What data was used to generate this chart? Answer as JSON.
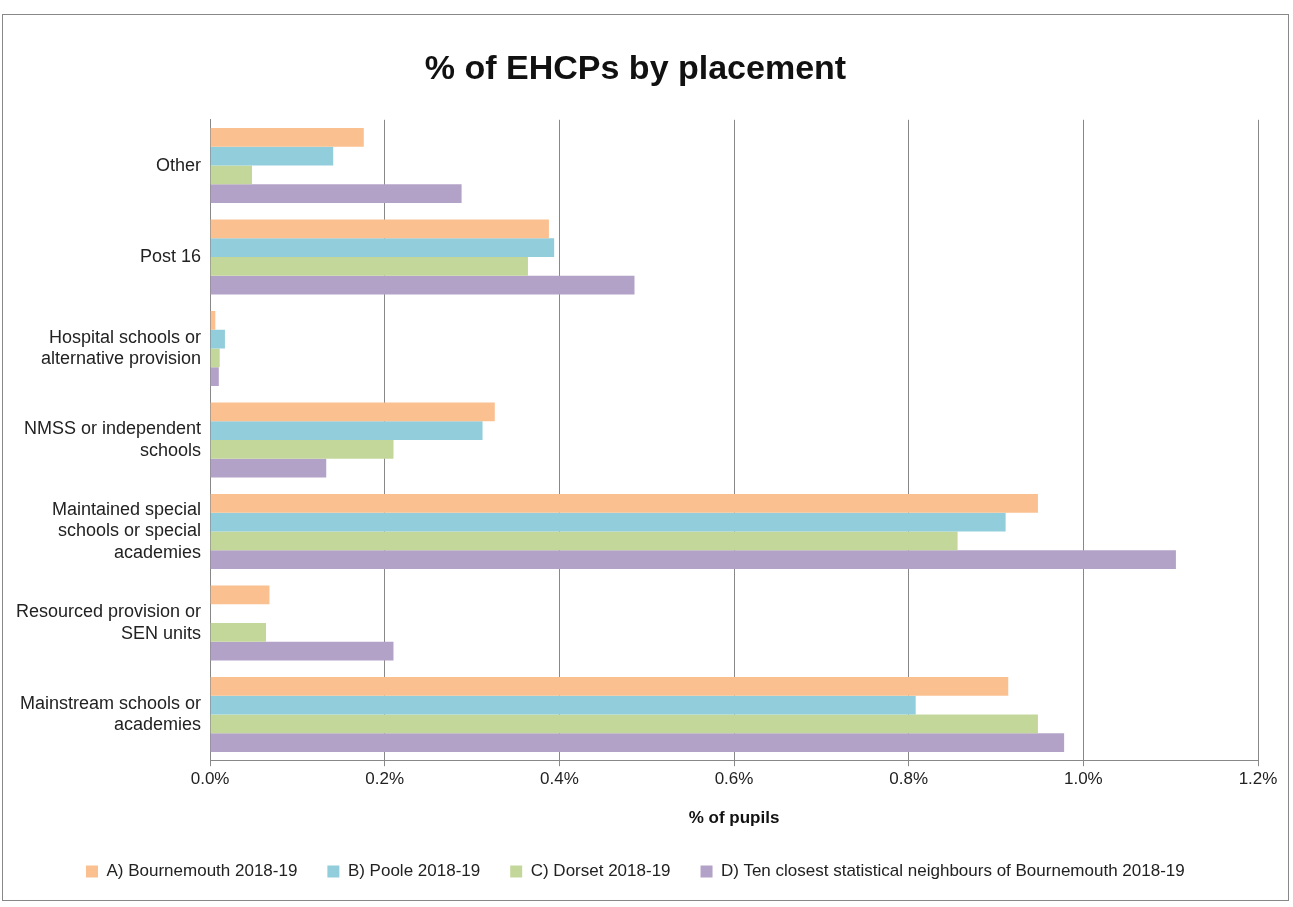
{
  "chart_data": {
    "type": "bar",
    "orientation": "horizontal",
    "title": "% of EHCPs by placement",
    "xlabel": "% of pupils",
    "categories": [
      "Other",
      "Post 16",
      "Hospital schools or alternative provision",
      "NMSS or independent schools",
      "Maintained special schools or special academies",
      "Resourced provision or SEN units",
      "Mainstream schools or academies"
    ],
    "series": [
      {
        "name": "A) Bournemouth 2018-19",
        "color": "#fac090",
        "values": [
          0.176,
          0.388,
          0.006,
          0.326,
          0.948,
          0.068,
          0.914
        ]
      },
      {
        "name": "B) Poole 2018-19",
        "color": "#92cddc",
        "values": [
          0.141,
          0.394,
          0.017,
          0.312,
          0.911,
          null,
          0.808
        ]
      },
      {
        "name": "C) Dorset 2018-19",
        "color": "#c4d79b",
        "values": [
          0.048,
          0.364,
          0.011,
          0.21,
          0.856,
          0.064,
          0.948
        ]
      },
      {
        "name": "D) Ten closest statistical neighbours of Bournemouth 2018-19",
        "color": "#b3a2c7",
        "values": [
          0.288,
          0.486,
          0.01,
          0.133,
          1.106,
          0.21,
          0.978
        ]
      }
    ],
    "xlim": [
      0,
      1.2
    ],
    "xticks": [
      {
        "value": 0,
        "label": "0.0%"
      },
      {
        "value": 0.2,
        "label": "0.2%"
      },
      {
        "value": 0.4,
        "label": "0.4%"
      },
      {
        "value": 0.6,
        "label": "0.6%"
      },
      {
        "value": 0.8,
        "label": "0.8%"
      },
      {
        "value": 1.0,
        "label": "1.0%"
      },
      {
        "value": 1.2,
        "label": "1.2%"
      }
    ],
    "grid": "x",
    "legend": "bottom"
  }
}
